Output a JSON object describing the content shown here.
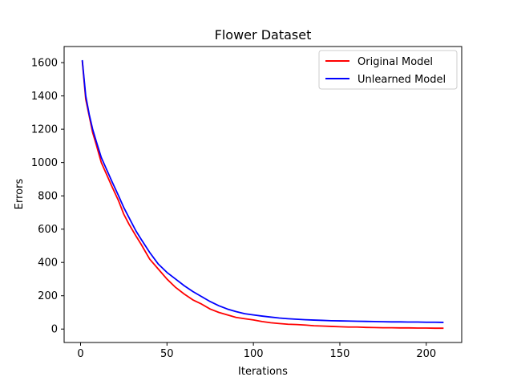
{
  "chart_data": {
    "type": "line",
    "title": "Flower Dataset",
    "xlabel": "Iterations",
    "ylabel": "Errors",
    "xlim": [
      -9.5,
      220.5
    ],
    "ylim": [
      -80.7,
      1696.7
    ],
    "xticks": [
      0,
      50,
      100,
      150,
      200
    ],
    "yticks": [
      0,
      200,
      400,
      600,
      800,
      1000,
      1200,
      1400,
      1600
    ],
    "xtick_labels": [
      "0",
      "50",
      "100",
      "150",
      "200"
    ],
    "ytick_labels": [
      "0",
      "200",
      "400",
      "600",
      "800",
      "1000",
      "1200",
      "1400",
      "1600"
    ],
    "grid": false,
    "legend_position": "top-right",
    "series": [
      {
        "name": "Original Model",
        "color": "#ff0000",
        "x": [
          1,
          3,
          5,
          7,
          9,
          12,
          15,
          18,
          22,
          25,
          28,
          32,
          35,
          40,
          45,
          50,
          55,
          60,
          65,
          70,
          75,
          80,
          85,
          90,
          95,
          100,
          105,
          110,
          115,
          120,
          125,
          130,
          135,
          140,
          145,
          150,
          155,
          160,
          165,
          170,
          175,
          180,
          185,
          190,
          195,
          200,
          205,
          210
        ],
        "values": [
          1610,
          1380,
          1280,
          1180,
          1110,
          1000,
          930,
          860,
          770,
          690,
          630,
          560,
          510,
          420,
          360,
          300,
          250,
          210,
          175,
          150,
          120,
          100,
          85,
          70,
          62,
          55,
          45,
          38,
          33,
          29,
          27,
          24,
          20,
          18,
          16,
          14,
          12,
          12,
          10,
          9,
          8,
          8,
          7,
          7,
          6,
          6,
          5,
          5
        ]
      },
      {
        "name": "Unlearned Model",
        "color": "#0000ff",
        "x": [
          1,
          3,
          5,
          7,
          9,
          12,
          15,
          18,
          22,
          25,
          28,
          32,
          35,
          40,
          45,
          50,
          55,
          60,
          65,
          70,
          75,
          80,
          85,
          90,
          95,
          100,
          105,
          110,
          115,
          120,
          125,
          130,
          135,
          140,
          145,
          150,
          155,
          160,
          165,
          170,
          175,
          180,
          185,
          190,
          195,
          200,
          205,
          210
        ],
        "values": [
          1615,
          1400,
          1290,
          1200,
          1130,
          1030,
          960,
          890,
          800,
          730,
          670,
          590,
          540,
          460,
          390,
          340,
          300,
          260,
          225,
          195,
          165,
          140,
          120,
          105,
          92,
          85,
          78,
          72,
          66,
          62,
          59,
          56,
          54,
          52,
          50,
          49,
          48,
          47,
          46,
          45,
          44,
          43,
          43,
          42,
          42,
          41,
          41,
          40
        ]
      }
    ]
  }
}
